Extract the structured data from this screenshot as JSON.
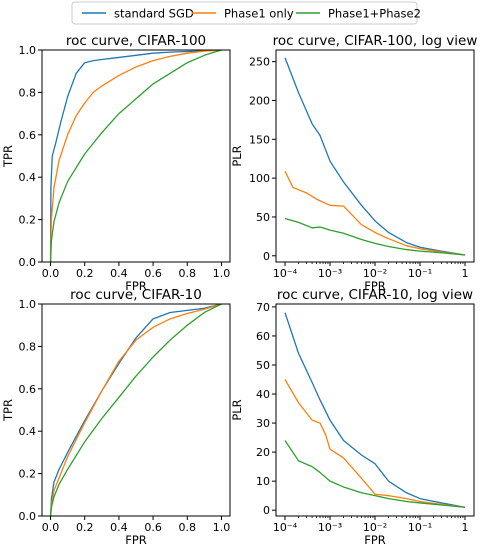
{
  "legend": {
    "position": "top-center",
    "entries": [
      {
        "name": "standard SGD",
        "color": "#1f77b4"
      },
      {
        "name": "Phase1 only",
        "color": "#ff7f0e"
      },
      {
        "name": "Phase1+Phase2",
        "color": "#2ca02c"
      }
    ]
  },
  "chart_data": [
    {
      "type": "line",
      "title": "roc curve, CIFAR-100",
      "xlabel": "FPR",
      "ylabel": "TPR",
      "xlim": [
        0,
        1
      ],
      "ylim": [
        0,
        1
      ],
      "x_ticks": [
        "0.0",
        "0.2",
        "0.4",
        "0.6",
        "0.8",
        "1.0"
      ],
      "y_ticks": [
        "0.0",
        "0.2",
        "0.4",
        "0.6",
        "0.8",
        "1.0"
      ],
      "x_tick_values": [
        0,
        0.2,
        0.4,
        0.6,
        0.8,
        1.0
      ],
      "y_tick_values": [
        0,
        0.2,
        0.4,
        0.6,
        0.8,
        1.0
      ],
      "grid": false,
      "series": [
        {
          "name": "standard SGD",
          "color": "#1f77b4",
          "x": [
            0,
            0.002,
            0.01,
            0.03,
            0.06,
            0.1,
            0.15,
            0.2,
            0.25,
            0.3,
            0.4,
            0.5,
            0.6,
            0.7,
            0.8,
            0.9,
            0.95,
            1.0
          ],
          "y": [
            0,
            0.35,
            0.5,
            0.56,
            0.66,
            0.78,
            0.89,
            0.94,
            0.95,
            0.955,
            0.965,
            0.975,
            0.985,
            0.99,
            0.993,
            0.996,
            0.998,
            1.0
          ]
        },
        {
          "name": "Phase1 only",
          "color": "#ff7f0e",
          "x": [
            0,
            0.005,
            0.02,
            0.05,
            0.1,
            0.15,
            0.2,
            0.25,
            0.3,
            0.4,
            0.5,
            0.6,
            0.7,
            0.8,
            0.9,
            1.0
          ],
          "y": [
            0,
            0.2,
            0.35,
            0.48,
            0.6,
            0.69,
            0.75,
            0.8,
            0.83,
            0.88,
            0.92,
            0.95,
            0.97,
            0.985,
            0.995,
            1.0
          ]
        },
        {
          "name": "Phase1+Phase2",
          "color": "#2ca02c",
          "x": [
            0,
            0.005,
            0.02,
            0.05,
            0.1,
            0.2,
            0.3,
            0.4,
            0.5,
            0.6,
            0.7,
            0.8,
            0.9,
            1.0
          ],
          "y": [
            0,
            0.1,
            0.19,
            0.28,
            0.38,
            0.51,
            0.61,
            0.7,
            0.77,
            0.84,
            0.89,
            0.94,
            0.975,
            1.0
          ]
        }
      ]
    },
    {
      "type": "line",
      "title": "roc curve, CIFAR-100, log view",
      "xlabel": "FPR",
      "ylabel": "PLR",
      "x_scale": "log",
      "xlim": [
        0.0001,
        1
      ],
      "ylim": [
        -8,
        265
      ],
      "x_ticks": [
        "10⁻⁴",
        "10⁻³",
        "10⁻²",
        "10⁻¹",
        "1"
      ],
      "x_tick_values": [
        0.0001,
        0.001,
        0.01,
        0.1,
        1
      ],
      "y_ticks": [
        "0",
        "50",
        "100",
        "150",
        "200",
        "250"
      ],
      "y_tick_values": [
        0,
        50,
        100,
        150,
        200,
        250
      ],
      "grid": false,
      "series": [
        {
          "name": "standard SGD",
          "color": "#1f77b4",
          "x": [
            0.0001,
            0.0002,
            0.0004,
            0.0006,
            0.001,
            0.002,
            0.005,
            0.01,
            0.02,
            0.05,
            0.1,
            0.3,
            1
          ],
          "y": [
            255,
            210,
            170,
            155,
            122,
            95,
            65,
            45,
            30,
            17,
            11,
            6,
            1
          ]
        },
        {
          "name": "Phase1 only",
          "color": "#ff7f0e",
          "x": [
            0.0001,
            0.00015,
            0.0003,
            0.0005,
            0.001,
            0.002,
            0.005,
            0.01,
            0.02,
            0.05,
            0.1,
            0.3,
            1
          ],
          "y": [
            109,
            88,
            81,
            73,
            65,
            64,
            40,
            30,
            22,
            13,
            9,
            5,
            1
          ]
        },
        {
          "name": "Phase1+Phase2",
          "color": "#2ca02c",
          "x": [
            0.0001,
            0.0002,
            0.0004,
            0.0006,
            0.001,
            0.002,
            0.005,
            0.01,
            0.02,
            0.05,
            0.1,
            0.3,
            1
          ],
          "y": [
            48,
            43,
            36,
            37,
            33,
            29,
            21,
            16,
            12,
            8,
            6,
            4,
            1
          ]
        }
      ]
    },
    {
      "type": "line",
      "title": "roc curve, CIFAR-10",
      "xlabel": "FPR",
      "ylabel": "TPR",
      "xlim": [
        0,
        1
      ],
      "ylim": [
        0,
        1
      ],
      "x_ticks": [
        "0.0",
        "0.2",
        "0.4",
        "0.6",
        "0.8",
        "1.0"
      ],
      "y_ticks": [
        "0.0",
        "0.2",
        "0.4",
        "0.6",
        "0.8",
        "1.0"
      ],
      "x_tick_values": [
        0,
        0.2,
        0.4,
        0.6,
        0.8,
        1.0
      ],
      "y_tick_values": [
        0,
        0.2,
        0.4,
        0.6,
        0.8,
        1.0
      ],
      "grid": false,
      "series": [
        {
          "name": "standard SGD",
          "color": "#1f77b4",
          "x": [
            0,
            0.005,
            0.02,
            0.05,
            0.1,
            0.2,
            0.3,
            0.4,
            0.5,
            0.6,
            0.7,
            0.8,
            0.9,
            1.0
          ],
          "y": [
            0,
            0.08,
            0.16,
            0.22,
            0.3,
            0.45,
            0.59,
            0.72,
            0.84,
            0.93,
            0.96,
            0.97,
            0.98,
            1.0
          ]
        },
        {
          "name": "Phase1 only",
          "color": "#ff7f0e",
          "x": [
            0,
            0.005,
            0.02,
            0.05,
            0.1,
            0.2,
            0.3,
            0.4,
            0.5,
            0.6,
            0.7,
            0.8,
            0.9,
            1.0
          ],
          "y": [
            0,
            0.05,
            0.12,
            0.18,
            0.28,
            0.44,
            0.59,
            0.73,
            0.83,
            0.89,
            0.93,
            0.955,
            0.975,
            1.0
          ]
        },
        {
          "name": "Phase1+Phase2",
          "color": "#2ca02c",
          "x": [
            0,
            0.005,
            0.02,
            0.05,
            0.1,
            0.2,
            0.3,
            0.4,
            0.5,
            0.6,
            0.7,
            0.8,
            0.9,
            1.0
          ],
          "y": [
            0,
            0.04,
            0.09,
            0.15,
            0.22,
            0.35,
            0.46,
            0.56,
            0.66,
            0.75,
            0.83,
            0.9,
            0.96,
            1.0
          ]
        }
      ]
    },
    {
      "type": "line",
      "title": "roc curve, CIFAR-10, log view",
      "xlabel": "FPR",
      "ylabel": "PLR",
      "x_scale": "log",
      "xlim": [
        0.0001,
        1
      ],
      "ylim": [
        -2,
        71
      ],
      "x_ticks": [
        "10⁻⁴",
        "10⁻³",
        "10⁻²",
        "10⁻¹",
        "1"
      ],
      "x_tick_values": [
        0.0001,
        0.001,
        0.01,
        0.1,
        1
      ],
      "y_ticks": [
        "0",
        "10",
        "20",
        "30",
        "40",
        "50",
        "60",
        "70"
      ],
      "y_tick_values": [
        0,
        10,
        20,
        30,
        40,
        50,
        60,
        70
      ],
      "grid": false,
      "series": [
        {
          "name": "standard SGD",
          "color": "#1f77b4",
          "x": [
            0.0001,
            0.0002,
            0.0004,
            0.0006,
            0.001,
            0.002,
            0.005,
            0.01,
            0.02,
            0.05,
            0.1,
            0.3,
            1
          ],
          "y": [
            68,
            54,
            44,
            38,
            31,
            24,
            19,
            16,
            10,
            6,
            4,
            2.5,
            1
          ]
        },
        {
          "name": "Phase1 only",
          "color": "#ff7f0e",
          "x": [
            0.0001,
            0.0002,
            0.0004,
            0.0006,
            0.0008,
            0.001,
            0.002,
            0.005,
            0.01,
            0.02,
            0.05,
            0.1,
            0.3,
            1
          ],
          "y": [
            45,
            37,
            31,
            30,
            26,
            21,
            18,
            11,
            5.5,
            5,
            4,
            3,
            2,
            1
          ]
        },
        {
          "name": "Phase1+Phase2",
          "color": "#2ca02c",
          "x": [
            0.0001,
            0.0002,
            0.0004,
            0.0006,
            0.001,
            0.002,
            0.005,
            0.01,
            0.02,
            0.05,
            0.1,
            0.3,
            1
          ],
          "y": [
            24,
            17,
            15,
            13,
            10,
            8,
            6,
            5,
            4,
            3,
            2.5,
            1.8,
            1
          ]
        }
      ]
    }
  ]
}
